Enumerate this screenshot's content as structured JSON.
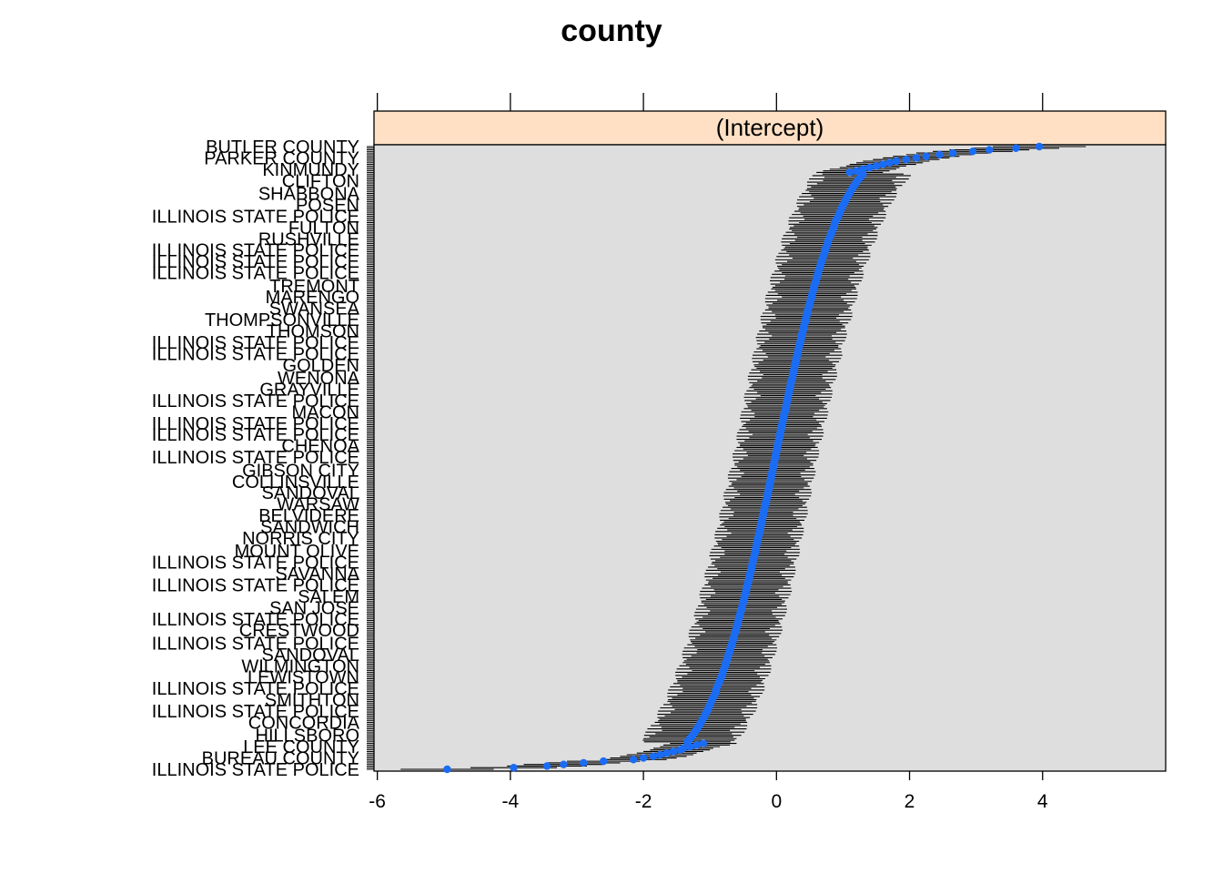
{
  "chart_data": {
    "type": "scatter",
    "title": "county",
    "panel_strip": "(Intercept)",
    "xlim": [
      -6.05,
      5.85
    ],
    "x_ticks": [
      -6,
      -4,
      -2,
      0,
      2,
      4
    ],
    "x_tick_labels": [
      "-6",
      "-4",
      "-2",
      "0",
      "2",
      "4"
    ],
    "ranked_by_estimate": true,
    "n_levels": 386,
    "series_color": "#1a6cf5",
    "strip_color": "#ffe0c4",
    "panel_bg": "#dedede",
    "grid": false,
    "legend": "none",
    "points": [
      {
        "estimate": -4.95,
        "lo": -5.65,
        "hi": -4.25
      },
      {
        "estimate": -3.95,
        "lo": -4.6,
        "hi": -3.3
      },
      {
        "estimate": -3.45,
        "lo": -4.05,
        "hi": -2.85
      },
      {
        "estimate": -3.2,
        "lo": -3.8,
        "hi": -2.6
      },
      {
        "estimate": -2.9,
        "lo": -3.45,
        "hi": -2.35
      },
      {
        "estimate": -2.6,
        "lo": -3.15,
        "hi": -2.05
      },
      {
        "estimate": -2.15,
        "lo": -2.65,
        "hi": -1.65
      },
      {
        "estimate": -2.0,
        "lo": -2.5,
        "hi": -1.5
      },
      {
        "estimate": -1.85,
        "lo": -2.35,
        "hi": -1.35
      },
      {
        "estimate": -1.75,
        "lo": -2.25,
        "hi": -1.25
      },
      {
        "estimate": -1.65,
        "lo": -2.1,
        "hi": -1.2
      },
      {
        "estimate": -1.55,
        "lo": -2.0,
        "hi": -1.1
      },
      {
        "estimate": -1.45,
        "lo": -1.9,
        "hi": -1.0
      },
      {
        "estimate": -1.4,
        "lo": -1.85,
        "hi": -0.95
      },
      {
        "estimate": -1.3,
        "lo": -1.75,
        "hi": -0.85
      },
      {
        "estimate": -1.2,
        "lo": -1.7,
        "hi": -0.7
      },
      {
        "estimate": -1.1,
        "lo": -1.6,
        "hi": -0.6
      },
      {
        "estimate": 1.1,
        "lo": 0.6,
        "hi": 1.6
      },
      {
        "estimate": 1.2,
        "lo": 0.7,
        "hi": 1.7
      },
      {
        "estimate": 1.3,
        "lo": 0.8,
        "hi": 1.8
      },
      {
        "estimate": 1.4,
        "lo": 0.95,
        "hi": 1.85
      },
      {
        "estimate": 1.5,
        "lo": 1.05,
        "hi": 1.95
      },
      {
        "estimate": 1.6,
        "lo": 1.1,
        "hi": 2.1
      },
      {
        "estimate": 1.7,
        "lo": 1.2,
        "hi": 2.2
      },
      {
        "estimate": 1.8,
        "lo": 1.3,
        "hi": 2.3
      },
      {
        "estimate": 1.95,
        "lo": 1.45,
        "hi": 2.45
      },
      {
        "estimate": 2.1,
        "lo": 1.6,
        "hi": 2.6
      },
      {
        "estimate": 2.25,
        "lo": 1.75,
        "hi": 2.75
      },
      {
        "estimate": 2.45,
        "lo": 1.95,
        "hi": 2.95
      },
      {
        "estimate": 2.65,
        "lo": 2.1,
        "hi": 3.2
      },
      {
        "estimate": 2.95,
        "lo": 2.35,
        "hi": 3.55
      },
      {
        "estimate": 3.2,
        "lo": 2.6,
        "hi": 3.8
      },
      {
        "estimate": 3.6,
        "lo": 2.95,
        "hi": 4.25
      },
      {
        "estimate": 3.95,
        "lo": 3.25,
        "hi": 4.65
      }
    ],
    "y_tick_labels": [
      "ILLINOIS STATE POLICE",
      "BUREAU COUNTY",
      "LEE COUNTY",
      "HILLSBORO",
      "CONCORDIA",
      "ILLINOIS STATE POLICE",
      "SMITHTON",
      "ILLINOIS STATE POLICE",
      "LEWISTOWN",
      "WILMINGTON",
      "SANDOVAL",
      "ILLINOIS STATE POLICE",
      "CRESTWOOD",
      "ILLINOIS STATE POLICE",
      "SAN JOSE",
      "SALEM",
      "ILLINOIS STATE POLICE",
      "SAVANNA",
      "ILLINOIS STATE POLICE",
      "MOUNT OLIVE",
      "NORRIS CITY",
      "SANDWICH",
      "BELVIDERE",
      "WARSAW",
      "SANDOVAL",
      "COLLINSVILLE",
      "GIBSON CITY",
      "ILLINOIS STATE POLICE",
      "CHENOA",
      "ILLINOIS STATE POLICE",
      "ILLINOIS STATE POLICE",
      "MACON",
      "ILLINOIS STATE POLICE",
      "GRAYVILLE",
      "WENONA",
      "GOLDEN",
      "ILLINOIS STATE POLICE",
      "ILLINOIS STATE POLICE",
      "THOMSON",
      "THOMPSONVILLE",
      "SWANSEA",
      "MARENGO",
      "TREMONT",
      "ILLINOIS STATE POLICE",
      "ILLINOIS STATE POLICE",
      "ILLINOIS STATE POLICE",
      "RUSHVILLE",
      "FULTON",
      "ILLINOIS STATE POLICE",
      "POSEN",
      "SHABBONA",
      "CLIFTON",
      "KINMUNDY",
      "PARKER COUNTY",
      "BUTLER COUNTY"
    ]
  }
}
